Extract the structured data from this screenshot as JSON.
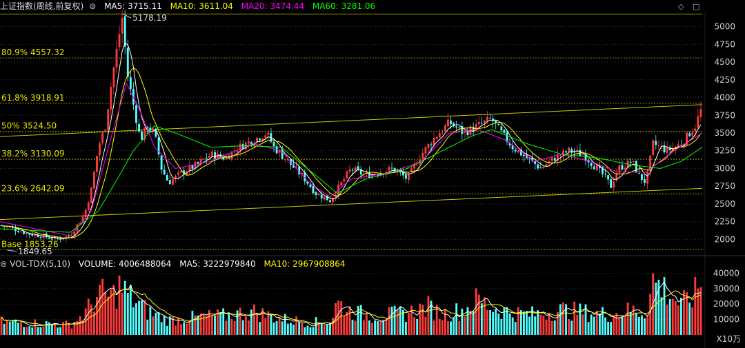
{
  "price_header": {
    "title": "上证指数(周线,前复权)",
    "ma5_label": "MA5: 3715.11",
    "ma10_label": "MA10: 3611.04",
    "ma20_label": "MA20: 3474.44",
    "ma60_label": "MA60: 3281.06"
  },
  "volume_header": {
    "title": "VOL-TDX(5,10)",
    "volume_label": "VOLUME: 4006488064",
    "ma5_label": "MA5: 3222979840",
    "ma10_label": "MA10: 2967908864"
  },
  "icons": {
    "left_arrow": "circle-arrow-icon",
    "diamond": "diamond-icon",
    "square": "square-icon"
  },
  "colors": {
    "background": "#000000",
    "up": "#ff3b3b",
    "down": "#54ffff",
    "ma5": "#ffffff",
    "ma10": "#ffff00",
    "ma20": "#ff00ff",
    "ma60": "#00ff00",
    "fib": "#c8c800",
    "axis_text": "#cfcfcf"
  },
  "chart_data": [
    {
      "type": "candlestick",
      "ylim": [
        1800,
        5200
      ],
      "y_ticks": [
        2000,
        2250,
        2500,
        2750,
        3000,
        3250,
        3500,
        3750,
        4000,
        4250,
        4500,
        4750,
        5000
      ],
      "peak_label": "5178.19",
      "low_label": "1849.65",
      "grid": "dotted horizontal",
      "fib_levels": [
        {
          "label": "80.9% 4557.32",
          "value": 4557.32
        },
        {
          "label": "61.8% 3918.91",
          "value": 3918.91
        },
        {
          "label": "50% 3524.50",
          "value": 3524.5
        },
        {
          "label": "38.2% 3130.09",
          "value": 3130.09
        },
        {
          "label": "23.6% 2642.09",
          "value": 2642.09
        },
        {
          "label": "Base 1853.26",
          "value": 1853.26
        }
      ],
      "top_line": 5178.19,
      "trend_lines": [
        {
          "start": [
            0,
            3450
          ],
          "end": [
            1,
            3900
          ]
        },
        {
          "start": [
            0,
            2280
          ],
          "end": [
            1,
            2720
          ]
        }
      ],
      "price_path": [
        [
          0.0,
          2200
        ],
        [
          0.02,
          2150
        ],
        [
          0.04,
          2080
        ],
        [
          0.06,
          2050
        ],
        [
          0.08,
          2000
        ],
        [
          0.1,
          2050
        ],
        [
          0.11,
          2200
        ],
        [
          0.12,
          2350
        ],
        [
          0.13,
          2700
        ],
        [
          0.14,
          3300
        ],
        [
          0.15,
          3600
        ],
        [
          0.16,
          4300
        ],
        [
          0.17,
          4900
        ],
        [
          0.175,
          5178
        ],
        [
          0.18,
          4400
        ],
        [
          0.19,
          3900
        ],
        [
          0.2,
          3400
        ],
        [
          0.21,
          3600
        ],
        [
          0.22,
          3500
        ],
        [
          0.23,
          3000
        ],
        [
          0.24,
          2800
        ],
        [
          0.26,
          2950
        ],
        [
          0.28,
          3050
        ],
        [
          0.3,
          3200
        ],
        [
          0.32,
          3150
        ],
        [
          0.34,
          3300
        ],
        [
          0.36,
          3400
        ],
        [
          0.38,
          3500
        ],
        [
          0.39,
          3300
        ],
        [
          0.41,
          3100
        ],
        [
          0.43,
          2900
        ],
        [
          0.45,
          2650
        ],
        [
          0.47,
          2550
        ],
        [
          0.48,
          2700
        ],
        [
          0.5,
          3000
        ],
        [
          0.52,
          2900
        ],
        [
          0.54,
          2950
        ],
        [
          0.56,
          3000
        ],
        [
          0.58,
          2850
        ],
        [
          0.6,
          3200
        ],
        [
          0.62,
          3450
        ],
        [
          0.64,
          3650
        ],
        [
          0.66,
          3500
        ],
        [
          0.68,
          3600
        ],
        [
          0.7,
          3700
        ],
        [
          0.71,
          3550
        ],
        [
          0.73,
          3300
        ],
        [
          0.75,
          3150
        ],
        [
          0.77,
          3000
        ],
        [
          0.79,
          3150
        ],
        [
          0.81,
          3250
        ],
        [
          0.83,
          3200
        ],
        [
          0.85,
          3000
        ],
        [
          0.86,
          2900
        ],
        [
          0.87,
          2750
        ],
        [
          0.88,
          3000
        ],
        [
          0.9,
          3100
        ],
        [
          0.91,
          2900
        ],
        [
          0.92,
          2800
        ],
        [
          0.93,
          3350
        ],
        [
          0.95,
          3250
        ],
        [
          0.97,
          3350
        ],
        [
          0.99,
          3600
        ],
        [
          1.0,
          3870
        ]
      ],
      "ma20_path": [
        [
          0.0,
          2250
        ],
        [
          0.1,
          2050
        ],
        [
          0.13,
          2400
        ],
        [
          0.16,
          3500
        ],
        [
          0.18,
          4200
        ],
        [
          0.2,
          3800
        ],
        [
          0.22,
          3300
        ],
        [
          0.25,
          3000
        ],
        [
          0.3,
          3100
        ],
        [
          0.36,
          3350
        ],
        [
          0.4,
          3250
        ],
        [
          0.44,
          2800
        ],
        [
          0.47,
          2600
        ],
        [
          0.5,
          2850
        ],
        [
          0.56,
          2950
        ],
        [
          0.6,
          3100
        ],
        [
          0.64,
          3500
        ],
        [
          0.68,
          3550
        ],
        [
          0.72,
          3400
        ],
        [
          0.76,
          3100
        ],
        [
          0.8,
          3200
        ],
        [
          0.84,
          3100
        ],
        [
          0.88,
          2950
        ],
        [
          0.92,
          2950
        ],
        [
          0.96,
          3250
        ],
        [
          1.0,
          3500
        ]
      ],
      "ma60_path": [
        [
          0.0,
          2150
        ],
        [
          0.1,
          2100
        ],
        [
          0.14,
          2400
        ],
        [
          0.17,
          2900
        ],
        [
          0.19,
          3250
        ],
        [
          0.22,
          3600
        ],
        [
          0.25,
          3500
        ],
        [
          0.3,
          3300
        ],
        [
          0.35,
          3320
        ],
        [
          0.4,
          3300
        ],
        [
          0.45,
          2900
        ],
        [
          0.48,
          2650
        ],
        [
          0.52,
          2850
        ],
        [
          0.58,
          3000
        ],
        [
          0.62,
          3200
        ],
        [
          0.67,
          3450
        ],
        [
          0.7,
          3550
        ],
        [
          0.75,
          3350
        ],
        [
          0.8,
          3200
        ],
        [
          0.85,
          3150
        ],
        [
          0.9,
          3050
        ],
        [
          0.94,
          3000
        ],
        [
          0.97,
          3100
        ],
        [
          1.0,
          3300
        ]
      ]
    },
    {
      "type": "bar",
      "ylim": [
        0,
        42000
      ],
      "y_ticks": [
        10000,
        20000,
        30000,
        40000
      ],
      "unit_label": "X10万",
      "volume_path": [
        [
          0.0,
          9000
        ],
        [
          0.05,
          8000
        ],
        [
          0.1,
          7000
        ],
        [
          0.12,
          14000
        ],
        [
          0.14,
          28000
        ],
        [
          0.16,
          26000
        ],
        [
          0.17,
          33000
        ],
        [
          0.19,
          24000
        ],
        [
          0.21,
          16000
        ],
        [
          0.24,
          10000
        ],
        [
          0.28,
          12000
        ],
        [
          0.32,
          13000
        ],
        [
          0.36,
          16000
        ],
        [
          0.4,
          11000
        ],
        [
          0.44,
          8500
        ],
        [
          0.47,
          9000
        ],
        [
          0.48,
          22000
        ],
        [
          0.5,
          16000
        ],
        [
          0.53,
          13000
        ],
        [
          0.56,
          14000
        ],
        [
          0.58,
          15000
        ],
        [
          0.61,
          19000
        ],
        [
          0.63,
          14000
        ],
        [
          0.66,
          17000
        ],
        [
          0.68,
          24000
        ],
        [
          0.7,
          19000
        ],
        [
          0.73,
          15000
        ],
        [
          0.76,
          14000
        ],
        [
          0.8,
          17000
        ],
        [
          0.84,
          15000
        ],
        [
          0.87,
          14000
        ],
        [
          0.9,
          17000
        ],
        [
          0.92,
          15000
        ],
        [
          0.93,
          37000
        ],
        [
          0.95,
          30000
        ],
        [
          0.97,
          20000
        ],
        [
          0.99,
          28000
        ],
        [
          1.0,
          38000
        ]
      ]
    }
  ]
}
